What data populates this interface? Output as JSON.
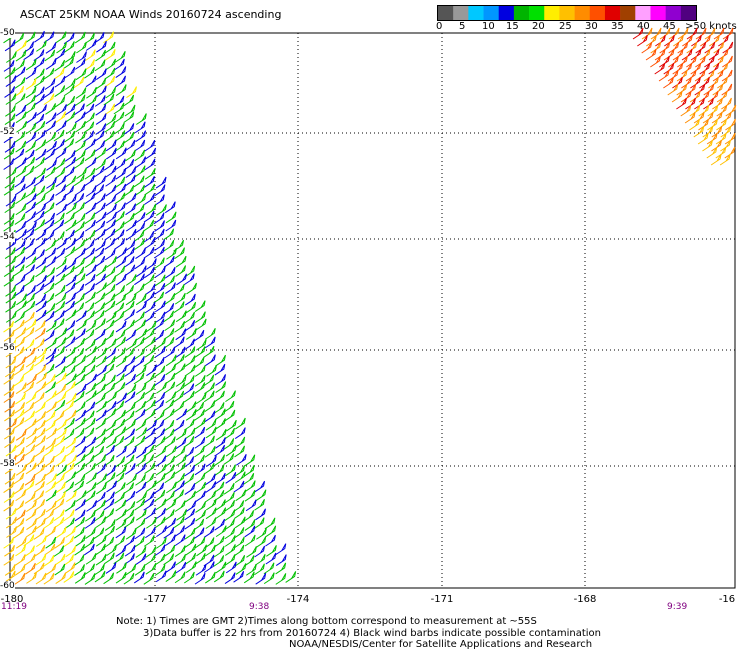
{
  "title": "ASCAT 25KM NOAA Winds 20160724 ascending",
  "colorbar": {
    "colors": [
      "#555555",
      "#999999",
      "#00c8ff",
      "#0096ff",
      "#0000e0",
      "#00b400",
      "#00e000",
      "#ffee00",
      "#ffc000",
      "#ff8c00",
      "#ff5000",
      "#e00000",
      "#a04000",
      "#ffa0ff",
      "#ff00ff",
      "#9000d0",
      "#500080"
    ],
    "labels": [
      "0",
      "5",
      "10",
      "15",
      "20",
      "25",
      "30",
      "35",
      "40",
      "45",
      ">50 knots"
    ]
  },
  "axes": {
    "lat_labels": [
      "-50",
      "-52",
      "-54",
      "-56",
      "-58",
      "-60"
    ],
    "lon_labels": [
      "-180",
      "-177",
      "-174",
      "-171",
      "-168",
      "-16"
    ]
  },
  "time_labels": [
    "11:19",
    "9:38",
    "9:39"
  ],
  "notes": {
    "line1": "Note: 1) Times are GMT 2)Times along bottom correspond to measurement at ~55S",
    "line2": "3)Data buffer is 22 hrs from 20160724 4) Black wind barbs indicate possible contamination",
    "line3": "NOAA/NESDIS/Center for Satellite Applications and Research"
  }
}
